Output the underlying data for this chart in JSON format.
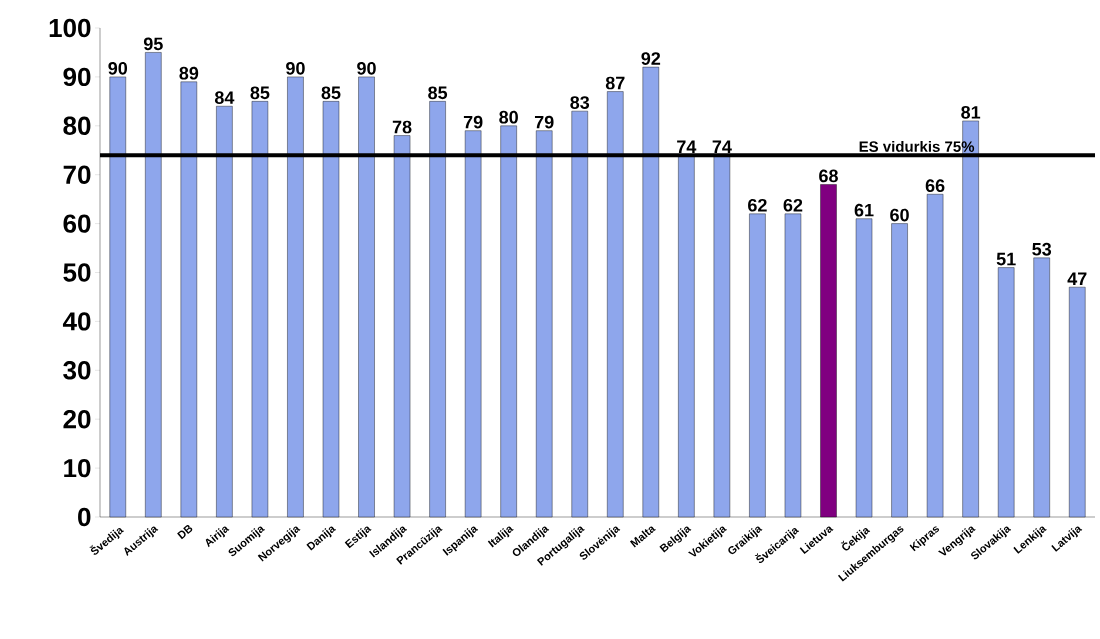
{
  "chart_data": {
    "type": "bar",
    "categories": [
      "Švedija",
      "Austrija",
      "DB",
      "Airija",
      "Suomija",
      "Norvegija",
      "Danija",
      "Estija",
      "Islandija",
      "Prancūzija",
      "Ispanija",
      "Italija",
      "Olandija",
      "Portugalija",
      "Slovėnija",
      "Malta",
      "Belgija",
      "Vokietija",
      "Graikija",
      "Šveicarija",
      "Lietuva",
      "Čekija",
      "Liuksemburgas",
      "Kipras",
      "Vengrija",
      "Slovakija",
      "Lenkija",
      "Latvija"
    ],
    "values": [
      90,
      95,
      89,
      84,
      85,
      90,
      85,
      90,
      78,
      85,
      79,
      80,
      79,
      83,
      87,
      92,
      74,
      74,
      62,
      62,
      68,
      61,
      60,
      66,
      81,
      51,
      53,
      47
    ],
    "colors": [
      "#8ea6ec",
      "#8ea6ec",
      "#8ea6ec",
      "#8ea6ec",
      "#8ea6ec",
      "#8ea6ec",
      "#8ea6ec",
      "#8ea6ec",
      "#8ea6ec",
      "#8ea6ec",
      "#8ea6ec",
      "#8ea6ec",
      "#8ea6ec",
      "#8ea6ec",
      "#8ea6ec",
      "#8ea6ec",
      "#8ea6ec",
      "#8ea6ec",
      "#8ea6ec",
      "#8ea6ec",
      "#800080",
      "#8ea6ec",
      "#8ea6ec",
      "#8ea6ec",
      "#8ea6ec",
      "#8ea6ec",
      "#8ea6ec",
      "#8ea6ec"
    ],
    "ylim": [
      0,
      100
    ],
    "yticks": [
      0,
      10,
      20,
      30,
      40,
      50,
      60,
      70,
      80,
      90,
      100
    ],
    "data_labels": true,
    "ref_lines": [
      {
        "axis": "y",
        "value": 74,
        "label": "ES vidurkis 75%",
        "color": "#000000"
      }
    ]
  }
}
